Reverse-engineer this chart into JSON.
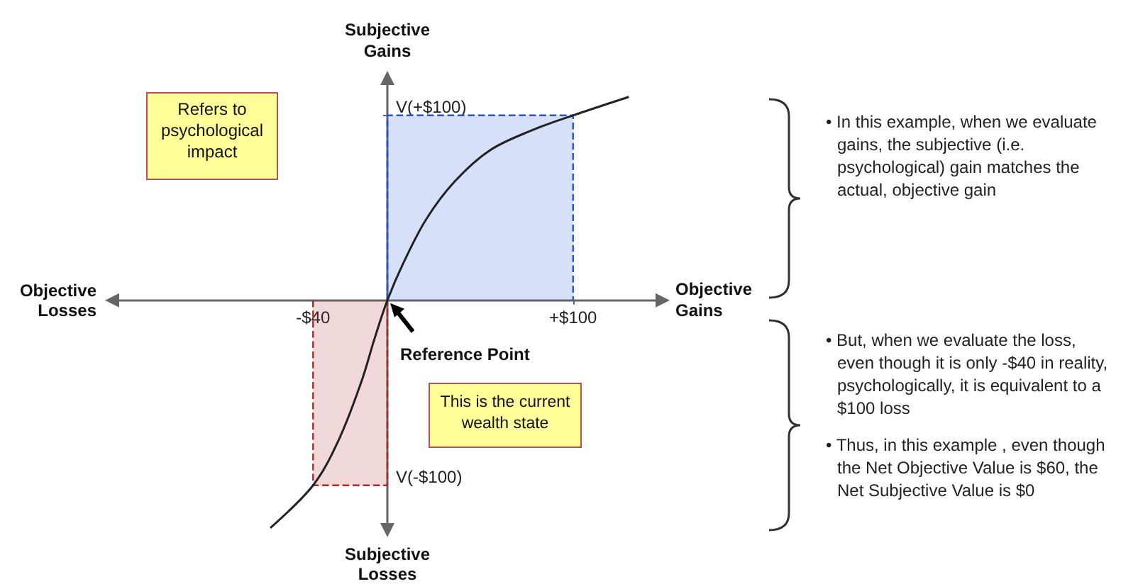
{
  "chart_data": {
    "type": "line",
    "xlabel": "Objective Gains",
    "ylabel": "Subjective Gains",
    "x": [
      -63,
      -40,
      -26,
      -14,
      -7,
      0,
      9,
      21,
      36,
      55,
      78,
      100,
      130
    ],
    "series": [
      {
        "type": "area",
        "color": "#2255dd",
        "x": [
          0,
          0,
          100,
          100
        ],
        "values": [
          0,
          100,
          100,
          0
        ],
        "line_style": "dashed"
      },
      {
        "type": "area",
        "color": "#b02a2a",
        "x": [
          -40,
          -40,
          0,
          0
        ],
        "values": [
          0,
          -100,
          -100,
          0
        ],
        "line_style": "dashed"
      },
      {
        "color": "#222222",
        "values": [
          -123,
          -100,
          -75,
          -44,
          -21,
          0,
          21,
          44,
          64,
          81,
          92,
          100,
          110
        ]
      }
    ],
    "xlim": [
      -149,
      149
    ],
    "ylim": [
      -125,
      121
    ],
    "xticks": [
      {
        "value": -40,
        "label": "-$40"
      },
      {
        "value": 100,
        "label": "+$100"
      }
    ],
    "yticks": [
      {
        "value": -100,
        "label": "V(-$100)"
      },
      {
        "value": 100,
        "label": "V(+$100)"
      }
    ],
    "annotations": [
      "Objective Losses",
      "Subjective Losses",
      {
        "text": "Reference Point",
        "x": 0,
        "y": 0
      },
      "Refers to psychological impact",
      "This is the current wealth state",
      "• In this example, when we evaluate gains, the subjective (i.e. psychological) gain matches the actual, objective gain",
      "• But, when we evaluate the loss, even though it is only -$40 in reality, psychologically, it is equivalent to a $100 loss",
      "• Thus, in this example , even though the Net Objective Value is $60, the Net Subjective Value is $0"
    ]
  }
}
